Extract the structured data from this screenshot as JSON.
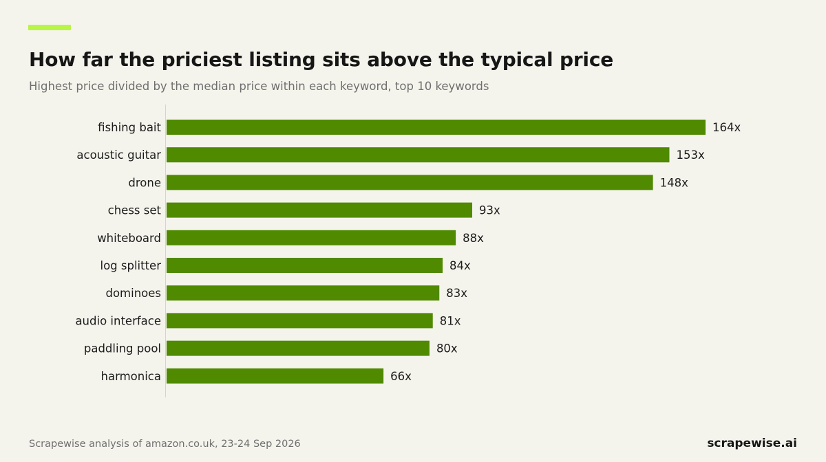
{
  "header": {
    "title": "How far the priciest listing sits above the typical price",
    "subtitle": "Highest price divided by the median price within each keyword, top 10 keywords"
  },
  "footer": {
    "source": "Scrapewise analysis of amazon.co.uk, 23-24 Sep 2026",
    "brand": "scrapewise.ai"
  },
  "colors": {
    "background": "#f5f4ec",
    "bar": "#4f8a00",
    "accent": "#b9f545",
    "axis": "#d6d5cc"
  },
  "chart_data": {
    "type": "bar",
    "orientation": "horizontal",
    "title": "How far the priciest listing sits above the typical price",
    "subtitle": "Highest price divided by the median price within each keyword, top 10 keywords",
    "categories": [
      "fishing bait",
      "acoustic guitar",
      "drone",
      "chess set",
      "whiteboard",
      "log splitter",
      "dominoes",
      "audio interface",
      "paddling pool",
      "harmonica"
    ],
    "values": [
      164,
      153,
      148,
      93,
      88,
      84,
      83,
      81,
      80,
      66
    ],
    "value_labels": [
      "164x",
      "153x",
      "148x",
      "93x",
      "88x",
      "84x",
      "83x",
      "81x",
      "80x",
      "66x"
    ],
    "xlim": [
      0,
      164
    ],
    "grid": false,
    "legend": "none"
  }
}
